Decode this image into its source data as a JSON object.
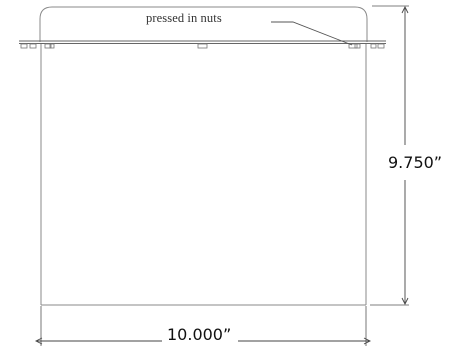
{
  "callout": {
    "label": "pressed in nuts"
  },
  "dimensions": {
    "height_label": "9.750”",
    "width_label": "10.000”"
  },
  "colors": {
    "outline": "#8a8a8a",
    "flange": "#666666",
    "dimension_line": "#444444",
    "text": "#111111"
  }
}
